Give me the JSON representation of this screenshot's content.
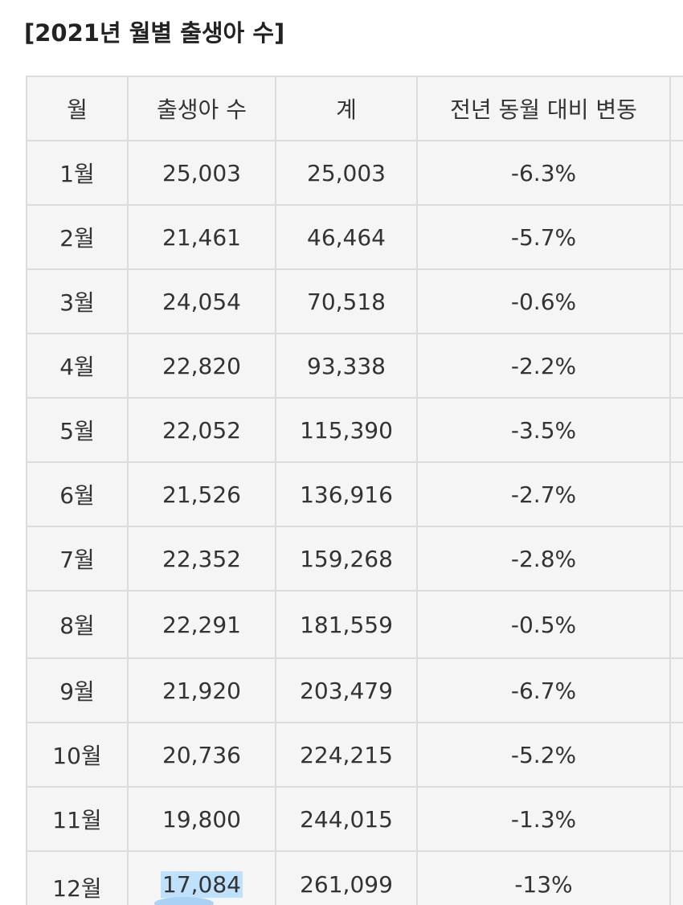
{
  "title": "[2021년 월별 출생아 수]",
  "table": {
    "headers": [
      "월",
      "출생아 수",
      "계",
      "전년 동월 대비 변동"
    ],
    "rows": [
      {
        "month": "1월",
        "births": "25,003",
        "total": "25,003",
        "change": "-6.3%"
      },
      {
        "month": "2월",
        "births": "21,461",
        "total": "46,464",
        "change": "-5.7%"
      },
      {
        "month": "3월",
        "births": "24,054",
        "total": "70,518",
        "change": "-0.6%"
      },
      {
        "month": "4월",
        "births": "22,820",
        "total": "93,338",
        "change": "-2.2%"
      },
      {
        "month": "5월",
        "births": "22,052",
        "total": "115,390",
        "change": "-3.5%"
      },
      {
        "month": "6월",
        "births": "21,526",
        "total": "136,916",
        "change": "-2.7%"
      },
      {
        "month": "7월",
        "births": "22,352",
        "total": "159,268",
        "change": "-2.8%"
      },
      {
        "month": "8월",
        "births": "22,291",
        "total": "181,559",
        "change": "-0.5%"
      },
      {
        "month": "9월",
        "births": "21,920",
        "total": "203,479",
        "change": "-6.7%"
      },
      {
        "month": "10월",
        "births": "20,736",
        "total": "224,215",
        "change": "-5.2%"
      },
      {
        "month": "11월",
        "births": "19,800",
        "total": "244,015",
        "change": "-1.3%"
      },
      {
        "month": "12월",
        "births": "17,084",
        "total": "261,099",
        "change": "-13%"
      }
    ]
  },
  "colors": {
    "highlight_blue": "#0a1a8f",
    "highlight_red": "#d51d1d",
    "selection": "#bfe1fb"
  }
}
